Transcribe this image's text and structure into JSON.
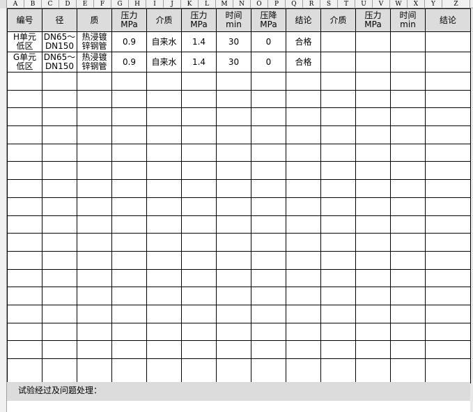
{
  "columns": [
    "A",
    "B",
    "C",
    "D",
    "E",
    "F",
    "G",
    "H",
    "I",
    "J",
    "K",
    "L",
    "M",
    "N",
    "O",
    "P",
    "Q",
    "R",
    "S",
    "T",
    "U",
    "V",
    "W",
    "X",
    "Y",
    "Z"
  ],
  "header": [
    [
      "编号"
    ],
    [
      "径"
    ],
    [
      "质"
    ],
    [
      "压力",
      "MPa"
    ],
    [
      "介质"
    ],
    [
      "压力",
      "MPa"
    ],
    [
      "时间",
      "min"
    ],
    [
      "压降",
      "MPa"
    ],
    [
      "结论"
    ],
    [
      "介质"
    ],
    [
      "压力",
      "MPa"
    ],
    [
      "时间",
      "min"
    ],
    [
      "结论"
    ]
  ],
  "rows": [
    [
      [
        "H单元",
        "低区"
      ],
      [
        "DN65～",
        "DN150"
      ],
      [
        "热浸镀",
        "锌钢管"
      ],
      [
        "0.9"
      ],
      [
        "自来水"
      ],
      [
        "1.4"
      ],
      [
        "30"
      ],
      [
        "0"
      ],
      [
        "合格"
      ],
      [
        ""
      ],
      [
        ""
      ],
      [
        ""
      ],
      [
        ""
      ]
    ],
    [
      [
        "G单元",
        "低区"
      ],
      [
        "DN65～",
        "DN150"
      ],
      [
        "热浸镀",
        "锌钢管"
      ],
      [
        "0.9"
      ],
      [
        "自来水"
      ],
      [
        "1.4"
      ],
      [
        "30"
      ],
      [
        "0"
      ],
      [
        "合格"
      ],
      [
        ""
      ],
      [
        ""
      ],
      [
        ""
      ],
      [
        ""
      ]
    ]
  ],
  "remark_label": "试验经过及问题处理："
}
